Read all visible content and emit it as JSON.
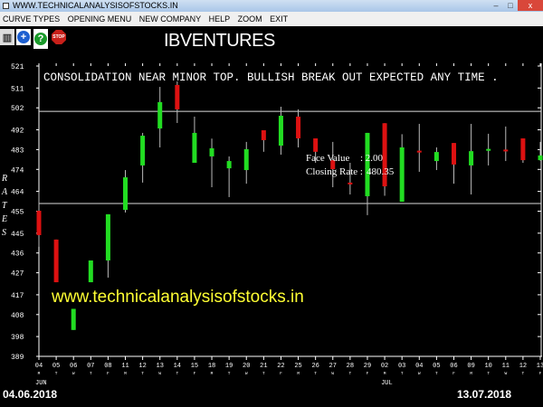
{
  "window": {
    "title": "WWW.TECHNICALANALYSISOFSTOCKS.IN",
    "buttons": [
      "minimize",
      "maximize",
      "close"
    ]
  },
  "menu": [
    "CURVE TYPES",
    "OPENING MENU",
    "NEW COMPANY",
    "HELP",
    "ZOOM",
    "EXIT"
  ],
  "toolbar": [
    {
      "icon": "book-icon"
    },
    {
      "icon": "plus-icon"
    },
    {
      "icon": "help-icon"
    },
    {
      "icon": "stop-icon",
      "label": "STOP"
    }
  ],
  "company": "IBVENTURES",
  "colors": {
    "up": "#22dd22",
    "down": "#dd1111",
    "axis": "#ffffff",
    "watermark": "#ffff33"
  },
  "info": {
    "face_value_label": "Face Value",
    "face_value": ": 2.00",
    "closing_rate_label": "Closing Rate :",
    "closing_rate": "480.35"
  },
  "date_range": {
    "start": "04.06.2018",
    "end": "13.07.2018"
  },
  "watermark": "www.technicalanalysisofstocks.in",
  "chart_data": {
    "type": "candlestick",
    "title": "CONSOLIDATION NEAR MINOR TOP. BULLISH BREAK OUT EXPECTED ANY TIME    .",
    "ylabel": "RATES",
    "ylim": [
      389,
      521
    ],
    "yticks": [
      521,
      511,
      502,
      492,
      483,
      474,
      464,
      455,
      445,
      436,
      427,
      417,
      408,
      398,
      389
    ],
    "horizontal_lines": [
      500.4,
      458.5
    ],
    "months": [
      {
        "label": "JUN",
        "at": 0
      },
      {
        "label": "JUL",
        "at": 20
      }
    ],
    "candles": [
      {
        "d": "04",
        "w": "M",
        "o": 455.2,
        "h": 463.8,
        "l": 438.8,
        "c": 444.1
      },
      {
        "d": "05",
        "w": "T",
        "o": 442.1,
        "h": 442.1,
        "l": 422.7,
        "c": 422.7
      },
      {
        "d": "06",
        "w": "W",
        "o": 401,
        "h": 410.6,
        "l": 401,
        "c": 410.6
      },
      {
        "d": "07",
        "w": "T",
        "o": 422.7,
        "h": 432.6,
        "l": 422.7,
        "c": 432.6
      },
      {
        "d": "08",
        "w": "F",
        "o": 432.6,
        "h": 453.6,
        "l": 424.8,
        "c": 453.6
      },
      {
        "d": "11",
        "w": "M",
        "o": 455.6,
        "h": 473.7,
        "l": 454.4,
        "c": 470.4
      },
      {
        "d": "12",
        "w": "T",
        "o": 475.8,
        "h": 490.6,
        "l": 468,
        "c": 489.3
      },
      {
        "d": "13",
        "w": "W",
        "o": 492.6,
        "h": 511.5,
        "l": 484,
        "c": 504.6
      },
      {
        "d": "14",
        "w": "T",
        "o": 512.4,
        "h": 514,
        "l": 495.1,
        "c": 501.3
      },
      {
        "d": "15",
        "w": "F",
        "o": 477,
        "h": 498,
        "l": 477,
        "c": 490.6
      },
      {
        "d": "18",
        "w": "M",
        "o": 479.9,
        "h": 488,
        "l": 465.9,
        "c": 483.6
      },
      {
        "d": "19",
        "w": "T",
        "o": 474.5,
        "h": 479.9,
        "l": 461.4,
        "c": 477.8
      },
      {
        "d": "20",
        "w": "W",
        "o": 473.7,
        "h": 486.5,
        "l": 467.5,
        "c": 483.2
      },
      {
        "d": "21",
        "w": "T",
        "o": 491.8,
        "h": 491.8,
        "l": 482,
        "c": 487.3
      },
      {
        "d": "22",
        "w": "F",
        "o": 484.8,
        "h": 502.5,
        "l": 480.7,
        "c": 498.4
      },
      {
        "d": "25",
        "w": "M",
        "o": 498,
        "h": 501.3,
        "l": 484,
        "c": 488.1
      },
      {
        "d": "26",
        "w": "T",
        "o": 488.1,
        "h": 488.1,
        "l": 477,
        "c": 482
      },
      {
        "d": "27",
        "w": "W",
        "o": 478.2,
        "h": 486.5,
        "l": 465.9,
        "c": 474.1
      },
      {
        "d": "28",
        "w": "T",
        "o": 468,
        "h": 477,
        "l": 462.6,
        "c": 467.5
      },
      {
        "d": "29",
        "w": "F",
        "o": 461.8,
        "h": 490.6,
        "l": 453.2,
        "c": 490.6
      },
      {
        "d": "02",
        "w": "M",
        "o": 495,
        "h": 495,
        "l": 462,
        "c": 466.3
      },
      {
        "d": "03",
        "w": "T",
        "o": 459.3,
        "h": 490,
        "l": 459.3,
        "c": 484
      },
      {
        "d": "04",
        "w": "W",
        "o": 482.5,
        "h": 494.7,
        "l": 472.9,
        "c": 482
      },
      {
        "d": "05",
        "w": "T",
        "o": 477.8,
        "h": 484,
        "l": 473.7,
        "c": 481.9
      },
      {
        "d": "06",
        "w": "F",
        "o": 486,
        "h": 486,
        "l": 467.5,
        "c": 476.2
      },
      {
        "d": "09",
        "w": "M",
        "o": 475.8,
        "h": 494.7,
        "l": 462.6,
        "c": 482.3
      },
      {
        "d": "10",
        "w": "T",
        "o": 482.8,
        "h": 490.2,
        "l": 475.8,
        "c": 483.3
      },
      {
        "d": "11",
        "w": "W",
        "o": 483,
        "h": 493.5,
        "l": 477.8,
        "c": 482.5
      },
      {
        "d": "12",
        "w": "T",
        "o": 488.1,
        "h": 488.1,
        "l": 477,
        "c": 478.2
      },
      {
        "d": "13",
        "w": "F",
        "o": 478.2,
        "h": 486.5,
        "l": 478,
        "c": 480.35
      }
    ]
  }
}
